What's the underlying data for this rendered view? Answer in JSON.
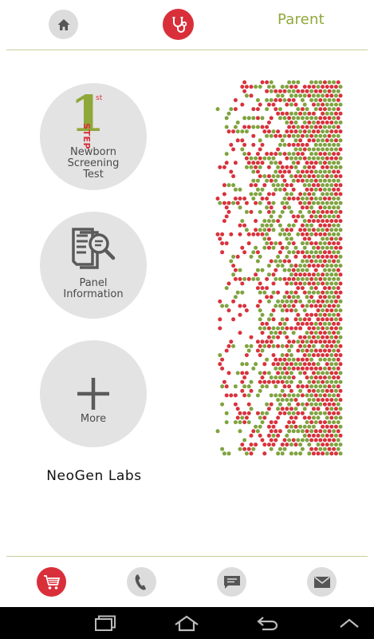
{
  "header": {
    "home_icon": "home-icon",
    "doctor_icon": "stethoscope-icon",
    "parent_label": "Parent"
  },
  "tiles": [
    {
      "id": "newborn-screening",
      "icon": "first-step-icon",
      "label": "Newborn\nScreening\nTest",
      "badge_digit": "1",
      "badge_sup": "st",
      "badge_word": "STEP"
    },
    {
      "id": "panel-information",
      "icon": "document-search-icon",
      "label": "Panel\nInformation"
    },
    {
      "id": "more",
      "icon": "plus-icon",
      "label": "More"
    }
  ],
  "brand": {
    "name": "NeoGen Labs"
  },
  "footer": {
    "items": [
      {
        "id": "cart",
        "icon": "cart-icon"
      },
      {
        "id": "phone",
        "icon": "phone-icon"
      },
      {
        "id": "message",
        "icon": "message-icon"
      },
      {
        "id": "mail",
        "icon": "mail-icon"
      }
    ]
  },
  "android_nav": {
    "items": [
      "recent-apps-icon",
      "home-icon",
      "back-icon",
      "up-chevron-icon"
    ]
  },
  "colors": {
    "accent_green": "#8fa83a",
    "accent_red": "#d92f3a",
    "dot_green": "#7fa33f",
    "dot_red": "#d8323c",
    "tile_gray": "#e3e3e3"
  }
}
